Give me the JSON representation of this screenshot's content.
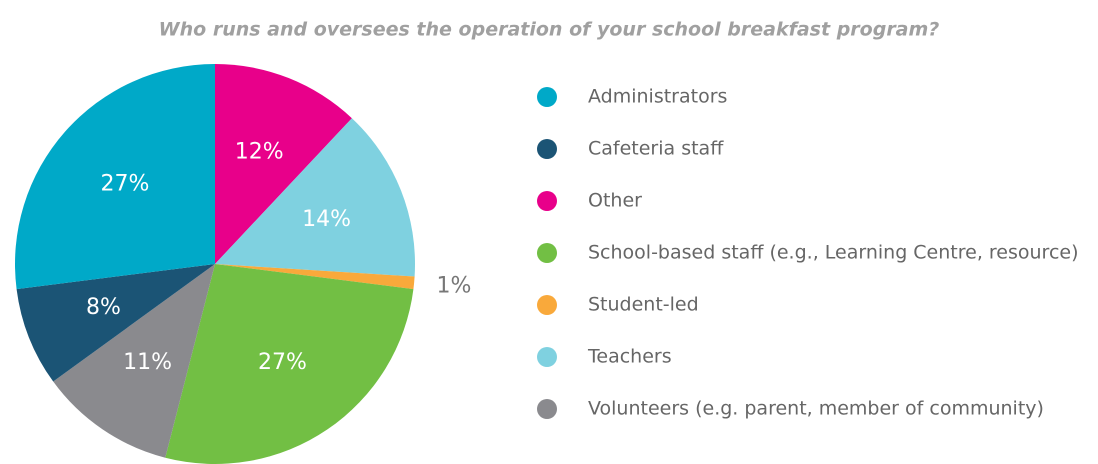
{
  "chart_data": {
    "type": "pie",
    "title": "Who runs and oversees the operation of your school breakfast program?",
    "categories": [
      "Administrators",
      "Cafeteria staff",
      "Other",
      "School-based staff (e.g., Learning Centre, resource)",
      "Student-led",
      "Teachers",
      "Volunteers (e.g. parent, member of community)"
    ],
    "values": [
      27,
      8,
      12,
      27,
      1,
      14,
      11
    ],
    "value_labels": [
      "27%",
      "8%",
      "12%",
      "27%",
      "1%",
      "14%",
      "11%"
    ],
    "colors": [
      "#00a9c8",
      "#1b5475",
      "#e8008a",
      "#72bf44",
      "#f9a93b",
      "#7fd1e0",
      "#8a8a8e"
    ],
    "slice_order": [
      2,
      5,
      4,
      3,
      6,
      1,
      0
    ],
    "legend": "right"
  }
}
